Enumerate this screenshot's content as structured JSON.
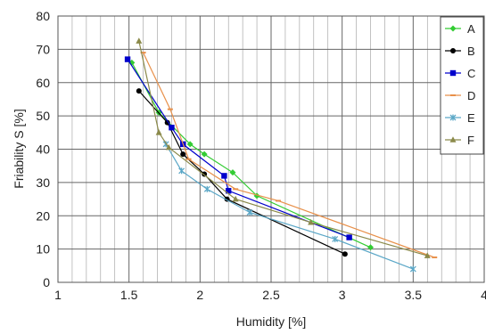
{
  "chart_data": {
    "type": "line",
    "xlabel": "Humidity [%]",
    "ylabel": "Friability S [%]",
    "xlim": [
      1,
      4
    ],
    "ylim": [
      0,
      80
    ],
    "x_ticks": [
      1,
      1.5,
      2,
      2.5,
      3,
      3.5,
      4
    ],
    "y_ticks": [
      0,
      10,
      20,
      30,
      40,
      50,
      60,
      70,
      80
    ],
    "x_tick_labels": [
      "1",
      "1.5",
      "2",
      "2.5",
      "3",
      "3.5",
      "4"
    ],
    "y_tick_labels": [
      "0",
      "10",
      "20",
      "30",
      "40",
      "50",
      "60",
      "70",
      "80"
    ],
    "grid": true,
    "legend_position": "top-right",
    "series": [
      {
        "name": "A",
        "color": "#33cc33",
        "marker": "diamond",
        "points": [
          [
            1.52,
            66
          ],
          [
            1.71,
            51
          ],
          [
            1.93,
            41.5
          ],
          [
            2.03,
            38.5
          ],
          [
            2.23,
            33
          ],
          [
            2.4,
            26
          ],
          [
            3.2,
            10.5
          ]
        ]
      },
      {
        "name": "B",
        "color": "#000000",
        "marker": "circle",
        "points": [
          [
            1.57,
            57.5
          ],
          [
            1.77,
            48
          ],
          [
            1.88,
            38.5
          ],
          [
            2.03,
            32.5
          ],
          [
            2.19,
            25
          ],
          [
            3.02,
            8.5
          ]
        ]
      },
      {
        "name": "C",
        "color": "#0000cc",
        "marker": "square",
        "points": [
          [
            1.49,
            67
          ],
          [
            1.8,
            46.5
          ],
          [
            1.88,
            41.5
          ],
          [
            2.17,
            32
          ],
          [
            2.2,
            27.5
          ],
          [
            3.05,
            13.5
          ]
        ]
      },
      {
        "name": "D",
        "color": "#e8904a",
        "marker": "dash",
        "points": [
          [
            1.6,
            69
          ],
          [
            1.79,
            52
          ],
          [
            1.92,
            37
          ],
          [
            2.25,
            28
          ],
          [
            2.55,
            24.5
          ],
          [
            3.65,
            7.5
          ]
        ]
      },
      {
        "name": "E",
        "color": "#5ba7c7",
        "marker": "star",
        "points": [
          [
            1.76,
            41.5
          ],
          [
            1.87,
            33.5
          ],
          [
            2.05,
            28
          ],
          [
            2.35,
            21
          ],
          [
            2.95,
            13
          ],
          [
            3.5,
            4
          ]
        ]
      },
      {
        "name": "F",
        "color": "#8b8a4a",
        "marker": "triangle",
        "points": [
          [
            1.57,
            72.5
          ],
          [
            1.71,
            45
          ],
          [
            1.78,
            40.5
          ],
          [
            2.25,
            25
          ],
          [
            2.78,
            18
          ],
          [
            3.6,
            8
          ]
        ]
      }
    ]
  }
}
